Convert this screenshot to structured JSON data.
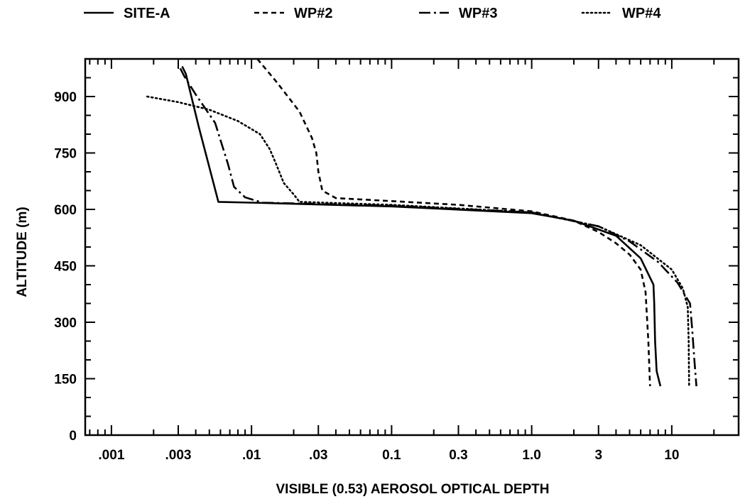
{
  "chart_data": {
    "type": "line",
    "title": "",
    "xlabel": "VISIBLE (0.53) AEROSOL OPTICAL DEPTH",
    "ylabel": "ALTITUDE (m)",
    "x_scale": "log",
    "xlim": [
      0.00065,
      30
    ],
    "ylim": [
      0,
      1000
    ],
    "x_ticks": [
      {
        "value": 0.001,
        "label": ".001"
      },
      {
        "value": 0.003,
        "label": ".003"
      },
      {
        "value": 0.01,
        "label": ".01"
      },
      {
        "value": 0.03,
        "label": ".03"
      },
      {
        "value": 0.1,
        "label": "0.1"
      },
      {
        "value": 0.3,
        "label": "0.3"
      },
      {
        "value": 1.0,
        "label": "1.0"
      },
      {
        "value": 3,
        "label": "3"
      },
      {
        "value": 10,
        "label": "10"
      }
    ],
    "y_ticks": [
      {
        "value": 0,
        "label": "0"
      },
      {
        "value": 150,
        "label": "150"
      },
      {
        "value": 300,
        "label": "300"
      },
      {
        "value": 450,
        "label": "450"
      },
      {
        "value": 600,
        "label": "600"
      },
      {
        "value": 750,
        "label": "750"
      },
      {
        "value": 900,
        "label": "900"
      }
    ],
    "grid": false,
    "legend_position": "top",
    "series": [
      {
        "name": "SITE-A",
        "style": "solid",
        "x": [
          0.0032,
          0.0034,
          0.0042,
          0.0058,
          0.01,
          0.1,
          1.0,
          2.0,
          4.0,
          6.0,
          7.4,
          7.5,
          7.6,
          7.8,
          8.3
        ],
        "y": [
          980,
          960,
          820,
          620,
          618,
          608,
          590,
          570,
          530,
          470,
          400,
          350,
          250,
          170,
          130
        ]
      },
      {
        "name": "WP#2",
        "style": "dashed",
        "x": [
          0.011,
          0.015,
          0.022,
          0.027,
          0.029,
          0.03,
          0.032,
          0.04,
          0.1,
          0.3,
          1.0,
          2.0,
          3.0,
          4.0,
          5.0,
          6.0,
          6.5,
          6.8,
          7.0
        ],
        "y": [
          1000,
          940,
          860,
          790,
          750,
          700,
          650,
          630,
          622,
          612,
          595,
          570,
          540,
          510,
          480,
          440,
          380,
          250,
          130
        ]
      },
      {
        "name": "WP#3",
        "style": "dashdot",
        "x": [
          0.0031,
          0.0033,
          0.004,
          0.0055,
          0.0068,
          0.0075,
          0.009,
          0.012,
          0.1,
          1.0,
          3.0,
          5.0,
          8.0,
          11.0,
          13.5,
          14.0,
          14.5,
          15.0
        ],
        "y": [
          975,
          955,
          905,
          830,
          720,
          660,
          632,
          618,
          610,
          592,
          555,
          515,
          460,
          405,
          350,
          280,
          200,
          130
        ]
      },
      {
        "name": "WP#4",
        "style": "dotted",
        "x": [
          0.0018,
          0.003,
          0.005,
          0.008,
          0.0115,
          0.0135,
          0.015,
          0.017,
          0.02,
          0.022,
          0.1,
          1.0,
          3.0,
          6.0,
          10.0,
          12.0,
          13.0,
          13.2,
          13.3
        ],
        "y": [
          900,
          885,
          865,
          835,
          800,
          760,
          720,
          670,
          640,
          620,
          612,
          592,
          555,
          505,
          440,
          390,
          340,
          250,
          130
        ]
      }
    ]
  }
}
